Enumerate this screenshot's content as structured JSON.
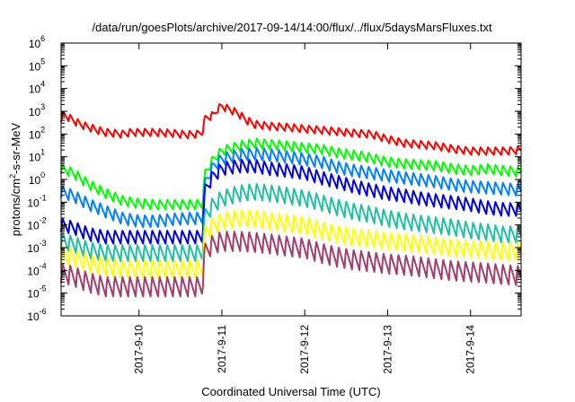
{
  "chart_data": {
    "type": "line",
    "title": "/data/run/goesPlots/archive/2017-09-14/14:00/flux/../flux/5daysMarsFluxes.txt",
    "xlabel": "Coordinated Universal Time (UTC)",
    "ylabel": {
      "prefix": "protons/cm",
      "sup": "2",
      "suffix": "-s-sr-MeV"
    },
    "x_ticks": [
      "2017-9-10",
      "2017-9-11",
      "2017-9-12",
      "2017-9-13",
      "2017-9-14"
    ],
    "x_tick_days": [
      10,
      11,
      12,
      13,
      14
    ],
    "xlim_days": [
      9.06,
      14.61
    ],
    "y_scale": "log",
    "ylim": [
      1e-06,
      1000000.0
    ],
    "y_tick_exponents": [
      -6,
      -5,
      -4,
      -3,
      -2,
      -1,
      0,
      1,
      2,
      3,
      4,
      5,
      6
    ],
    "y_tick_base": "10",
    "grid": false,
    "legend": "none",
    "series": [
      {
        "color": "#ff0000",
        "points": [
          [
            9.06,
            500
          ],
          [
            9.1,
            700
          ],
          [
            9.2,
            420
          ],
          [
            9.3,
            260
          ],
          [
            9.4,
            200
          ],
          [
            9.5,
            150
          ],
          [
            9.6,
            120
          ],
          [
            9.7,
            110
          ],
          [
            9.8,
            100
          ],
          [
            9.9,
            120
          ],
          [
            10.0,
            120
          ],
          [
            10.1,
            120
          ],
          [
            10.2,
            120
          ],
          [
            10.3,
            115
          ],
          [
            10.4,
            110
          ],
          [
            10.5,
            100
          ],
          [
            10.6,
            95
          ],
          [
            10.7,
            100
          ],
          [
            10.76,
            120
          ],
          [
            10.8,
            500
          ],
          [
            10.9,
            700
          ],
          [
            10.95,
            1300
          ],
          [
            11.0,
            1700
          ],
          [
            11.1,
            1200
          ],
          [
            11.2,
            800
          ],
          [
            11.3,
            400
          ],
          [
            11.4,
            270
          ],
          [
            11.6,
            220
          ],
          [
            11.8,
            200
          ],
          [
            12.0,
            170
          ],
          [
            12.2,
            150
          ],
          [
            12.4,
            130
          ],
          [
            12.6,
            110
          ],
          [
            12.8,
            100
          ],
          [
            13.0,
            60
          ],
          [
            13.2,
            40
          ],
          [
            13.4,
            35
          ],
          [
            13.6,
            30
          ],
          [
            13.8,
            22
          ],
          [
            14.0,
            18
          ],
          [
            14.2,
            18
          ],
          [
            14.4,
            18
          ],
          [
            14.61,
            20
          ]
        ],
        "amp": 0.35,
        "period": 0.09
      },
      {
        "color": "#00ff00",
        "points": [
          [
            9.06,
            3
          ],
          [
            9.2,
            2
          ],
          [
            9.4,
            0.6
          ],
          [
            9.6,
            0.25
          ],
          [
            9.8,
            0.12
          ],
          [
            10.0,
            0.09
          ],
          [
            10.2,
            0.08
          ],
          [
            10.4,
            0.08
          ],
          [
            10.6,
            0.08
          ],
          [
            10.76,
            0.08
          ],
          [
            10.8,
            2
          ],
          [
            10.9,
            8
          ],
          [
            11.0,
            18
          ],
          [
            11.2,
            30
          ],
          [
            11.4,
            40
          ],
          [
            11.6,
            35
          ],
          [
            11.8,
            30
          ],
          [
            12.0,
            25
          ],
          [
            12.2,
            22
          ],
          [
            12.4,
            15
          ],
          [
            12.6,
            12
          ],
          [
            12.8,
            9
          ],
          [
            13.0,
            6
          ],
          [
            13.2,
            5
          ],
          [
            13.4,
            4.5
          ],
          [
            13.6,
            4
          ],
          [
            13.8,
            3
          ],
          [
            14.0,
            2.5
          ],
          [
            14.2,
            3
          ],
          [
            14.4,
            2.5
          ],
          [
            14.61,
            2.2
          ]
        ],
        "amp": 0.45,
        "period": 0.09
      },
      {
        "color": "#0080ff",
        "points": [
          [
            9.06,
            0.3
          ],
          [
            9.2,
            0.2
          ],
          [
            9.4,
            0.08
          ],
          [
            9.6,
            0.04
          ],
          [
            9.8,
            0.02
          ],
          [
            10.0,
            0.015
          ],
          [
            10.2,
            0.015
          ],
          [
            10.4,
            0.018
          ],
          [
            10.6,
            0.02
          ],
          [
            10.76,
            0.02
          ],
          [
            10.8,
            0.8
          ],
          [
            10.9,
            4
          ],
          [
            11.0,
            8
          ],
          [
            11.2,
            12
          ],
          [
            11.4,
            14
          ],
          [
            11.6,
            12
          ],
          [
            11.8,
            10
          ],
          [
            12.0,
            8
          ],
          [
            12.2,
            6
          ],
          [
            12.4,
            3.5
          ],
          [
            12.6,
            2.5
          ],
          [
            12.8,
            2
          ],
          [
            13.0,
            1.5
          ],
          [
            13.2,
            1.2
          ],
          [
            13.4,
            1
          ],
          [
            13.6,
            0.8
          ],
          [
            13.8,
            0.6
          ],
          [
            14.0,
            0.5
          ],
          [
            14.2,
            0.45
          ],
          [
            14.4,
            0.4
          ],
          [
            14.61,
            0.35
          ]
        ],
        "amp": 0.55,
        "period": 0.09
      },
      {
        "color": "#0000dd",
        "points": [
          [
            9.06,
            0.01
          ],
          [
            9.2,
            0.008
          ],
          [
            9.4,
            0.004
          ],
          [
            9.6,
            0.003
          ],
          [
            9.8,
            0.003
          ],
          [
            10.0,
            0.003
          ],
          [
            10.2,
            0.003
          ],
          [
            10.4,
            0.003
          ],
          [
            10.6,
            0.003
          ],
          [
            10.76,
            0.003
          ],
          [
            10.8,
            0.4
          ],
          [
            10.9,
            1.5
          ],
          [
            11.0,
            3
          ],
          [
            11.2,
            4
          ],
          [
            11.4,
            4
          ],
          [
            11.6,
            3
          ],
          [
            11.8,
            2.5
          ],
          [
            12.0,
            2
          ],
          [
            12.2,
            1.2
          ],
          [
            12.4,
            0.8
          ],
          [
            12.6,
            0.5
          ],
          [
            12.8,
            0.35
          ],
          [
            13.0,
            0.25
          ],
          [
            13.2,
            0.2
          ],
          [
            13.4,
            0.15
          ],
          [
            13.6,
            0.12
          ],
          [
            13.8,
            0.1
          ],
          [
            14.0,
            0.08
          ],
          [
            14.2,
            0.06
          ],
          [
            14.4,
            0.05
          ],
          [
            14.61,
            0.05
          ]
        ],
        "amp": 0.6,
        "period": 0.09
      },
      {
        "color": "#20c0a0",
        "points": [
          [
            9.06,
            0.002
          ],
          [
            9.2,
            0.0015
          ],
          [
            9.4,
            0.0008
          ],
          [
            9.6,
            0.0006
          ],
          [
            9.8,
            0.0006
          ],
          [
            10.0,
            0.0006
          ],
          [
            10.2,
            0.0006
          ],
          [
            10.4,
            0.0006
          ],
          [
            10.6,
            0.0006
          ],
          [
            10.76,
            0.0006
          ],
          [
            10.8,
            0.03
          ],
          [
            10.9,
            0.08
          ],
          [
            11.0,
            0.15
          ],
          [
            11.2,
            0.25
          ],
          [
            11.4,
            0.3
          ],
          [
            11.6,
            0.25
          ],
          [
            11.8,
            0.2
          ],
          [
            12.0,
            0.15
          ],
          [
            12.2,
            0.1
          ],
          [
            12.4,
            0.06
          ],
          [
            12.6,
            0.04
          ],
          [
            12.8,
            0.03
          ],
          [
            13.0,
            0.02
          ],
          [
            13.2,
            0.015
          ],
          [
            13.4,
            0.012
          ],
          [
            13.6,
            0.01
          ],
          [
            13.8,
            0.008
          ],
          [
            14.0,
            0.006
          ],
          [
            14.2,
            0.005
          ],
          [
            14.4,
            0.004
          ],
          [
            14.61,
            0.004
          ]
        ],
        "amp": 0.75,
        "period": 0.09
      },
      {
        "color": "#ffff00",
        "points": [
          [
            9.06,
            0.0005
          ],
          [
            9.2,
            0.0004
          ],
          [
            9.4,
            0.0002
          ],
          [
            9.6,
            0.00015
          ],
          [
            9.8,
            0.00012
          ],
          [
            10.0,
            0.00012
          ],
          [
            10.2,
            0.00012
          ],
          [
            10.4,
            0.00012
          ],
          [
            10.6,
            0.00012
          ],
          [
            10.76,
            0.00012
          ],
          [
            10.8,
            0.005
          ],
          [
            10.9,
            0.01
          ],
          [
            11.0,
            0.015
          ],
          [
            11.2,
            0.02
          ],
          [
            11.4,
            0.02
          ],
          [
            11.6,
            0.015
          ],
          [
            11.8,
            0.012
          ],
          [
            12.0,
            0.01
          ],
          [
            12.2,
            0.006
          ],
          [
            12.4,
            0.004
          ],
          [
            12.6,
            0.003
          ],
          [
            12.8,
            0.0025
          ],
          [
            13.0,
            0.002
          ],
          [
            13.2,
            0.0018
          ],
          [
            13.4,
            0.0015
          ],
          [
            13.6,
            0.0012
          ],
          [
            13.8,
            0.001
          ],
          [
            14.0,
            0.0009
          ],
          [
            14.2,
            0.0008
          ],
          [
            14.4,
            0.0007
          ],
          [
            14.61,
            0.0007
          ]
        ],
        "amp": 0.8,
        "period": 0.09
      },
      {
        "color": "#a0406a",
        "points": [
          [
            9.06,
            8e-05
          ],
          [
            9.2,
            6e-05
          ],
          [
            9.4,
            3e-05
          ],
          [
            9.6,
            2e-05
          ],
          [
            9.8,
            2e-05
          ],
          [
            10.0,
            2e-05
          ],
          [
            10.2,
            2e-05
          ],
          [
            10.4,
            2e-05
          ],
          [
            10.6,
            2e-05
          ],
          [
            10.76,
            2e-05
          ],
          [
            10.8,
            0.0008
          ],
          [
            10.9,
            0.0015
          ],
          [
            11.0,
            0.002
          ],
          [
            11.2,
            0.002
          ],
          [
            11.4,
            0.0018
          ],
          [
            11.6,
            0.0015
          ],
          [
            11.8,
            0.0012
          ],
          [
            12.0,
            0.001
          ],
          [
            12.2,
            0.0006
          ],
          [
            12.4,
            0.0004
          ],
          [
            12.6,
            0.0003
          ],
          [
            12.8,
            0.00025
          ],
          [
            13.0,
            0.0002
          ],
          [
            13.2,
            0.00018
          ],
          [
            13.4,
            0.00015
          ],
          [
            13.6,
            0.00012
          ],
          [
            13.8,
            0.0001
          ],
          [
            14.0,
            9e-05
          ],
          [
            14.2,
            8e-05
          ],
          [
            14.4,
            7e-05
          ],
          [
            14.61,
            6e-05
          ]
        ],
        "amp": 0.9,
        "period": 0.09
      }
    ]
  }
}
